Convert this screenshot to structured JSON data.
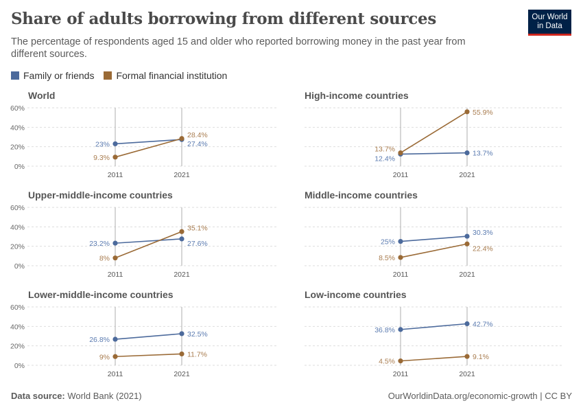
{
  "header": {
    "title": "Share of adults borrowing from different sources",
    "subtitle": "The percentage of respondents aged 15 and older who reported borrowing money in the past year from different sources.",
    "logo_text": "Our World in Data"
  },
  "legend": [
    {
      "label": "Family or friends",
      "color": "#4c6a9c"
    },
    {
      "label": "Formal financial institution",
      "color": "#9a6a36"
    }
  ],
  "footer": {
    "source_label": "Data source:",
    "source": "World Bank (2021)",
    "url": "OurWorldinData.org/economic-growth | CC BY"
  },
  "chart_data": [
    {
      "type": "line",
      "title": "World",
      "x": [
        "2011",
        "2021"
      ],
      "ylim": [
        0,
        60
      ],
      "yticks": [
        "0%",
        "20%",
        "40%",
        "60%"
      ],
      "grid": true,
      "series": [
        {
          "name": "Family or friends",
          "values": [
            23,
            27.4
          ],
          "labels": [
            "23%",
            "27.4%"
          ]
        },
        {
          "name": "Formal financial institution",
          "values": [
            9.3,
            28.4
          ],
          "labels": [
            "9.3%",
            "28.4%"
          ]
        }
      ]
    },
    {
      "type": "line",
      "title": "High-income countries",
      "x": [
        "2011",
        "2021"
      ],
      "ylim": [
        0,
        60
      ],
      "grid": true,
      "series": [
        {
          "name": "Family or friends",
          "values": [
            12.4,
            13.7
          ],
          "labels": [
            "12.4%",
            "13.7%"
          ]
        },
        {
          "name": "Formal financial institution",
          "values": [
            13.7,
            55.9
          ],
          "labels": [
            "13.7%",
            "55.9%"
          ]
        }
      ]
    },
    {
      "type": "line",
      "title": "Upper-middle-income countries",
      "x": [
        "2011",
        "2021"
      ],
      "ylim": [
        0,
        60
      ],
      "yticks": [
        "0%",
        "20%",
        "40%",
        "60%"
      ],
      "grid": true,
      "series": [
        {
          "name": "Family or friends",
          "values": [
            23.2,
            27.6
          ],
          "labels": [
            "23.2%",
            "27.6%"
          ]
        },
        {
          "name": "Formal financial institution",
          "values": [
            8,
            35.1
          ],
          "labels": [
            "8%",
            "35.1%"
          ]
        }
      ]
    },
    {
      "type": "line",
      "title": "Middle-income countries",
      "x": [
        "2011",
        "2021"
      ],
      "ylim": [
        0,
        60
      ],
      "grid": true,
      "series": [
        {
          "name": "Family or friends",
          "values": [
            25,
            30.3
          ],
          "labels": [
            "25%",
            "30.3%"
          ]
        },
        {
          "name": "Formal financial institution",
          "values": [
            8.5,
            22.4
          ],
          "labels": [
            "8.5%",
            "22.4%"
          ]
        }
      ]
    },
    {
      "type": "line",
      "title": "Lower-middle-income countries",
      "x": [
        "2011",
        "2021"
      ],
      "ylim": [
        0,
        60
      ],
      "yticks": [
        "0%",
        "20%",
        "40%",
        "60%"
      ],
      "grid": true,
      "series": [
        {
          "name": "Family or friends",
          "values": [
            26.8,
            32.5
          ],
          "labels": [
            "26.8%",
            "32.5%"
          ]
        },
        {
          "name": "Formal financial institution",
          "values": [
            9,
            11.7
          ],
          "labels": [
            "9%",
            "11.7%"
          ]
        }
      ]
    },
    {
      "type": "line",
      "title": "Low-income countries",
      "x": [
        "2011",
        "2021"
      ],
      "ylim": [
        0,
        60
      ],
      "grid": true,
      "series": [
        {
          "name": "Family or friends",
          "values": [
            36.8,
            42.7
          ],
          "labels": [
            "36.8%",
            "42.7%"
          ]
        },
        {
          "name": "Formal financial institution",
          "values": [
            4.5,
            9.1
          ],
          "labels": [
            "4.5%",
            "9.1%"
          ]
        }
      ]
    }
  ]
}
